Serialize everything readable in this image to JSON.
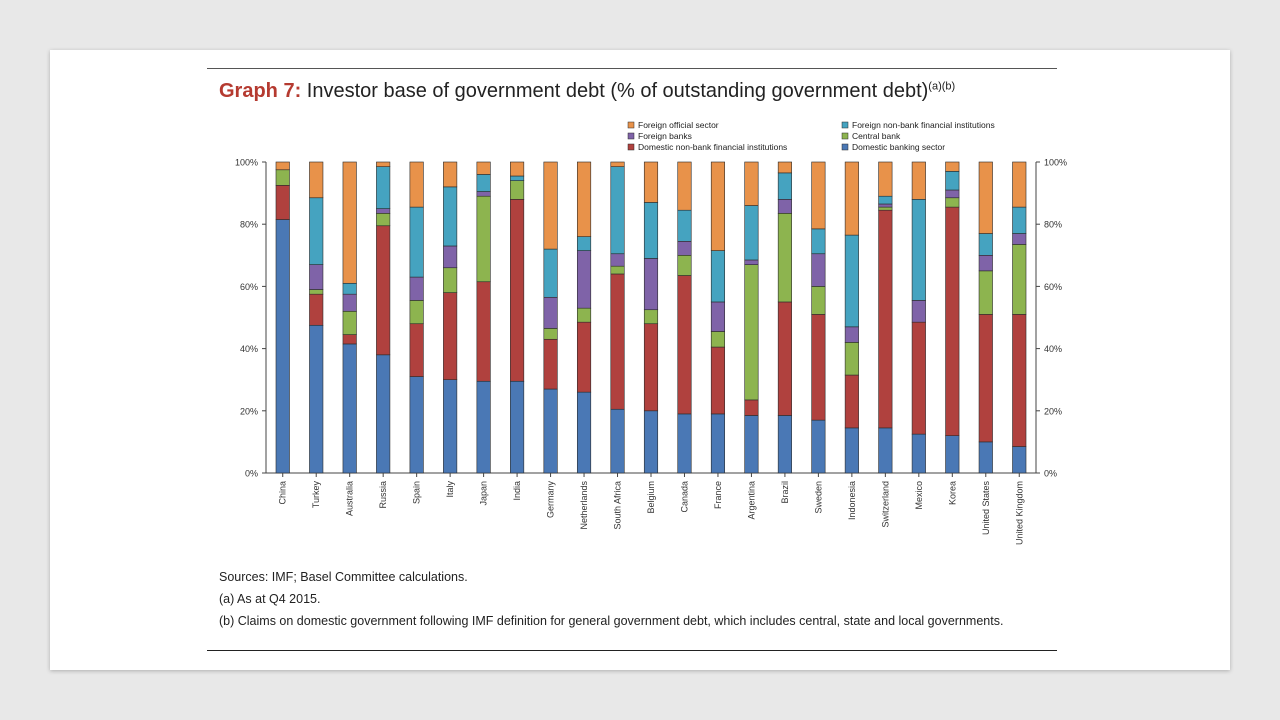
{
  "slide": {
    "title_prefix": "Graph 7:",
    "title_text": " Investor base of government debt (% of outstanding government debt)",
    "title_sup": "(a)(b)",
    "note_sources": "Sources: IMF; Basel Committee calculations.",
    "note_a": "(a) As at Q4 2015.",
    "note_b": "(b) Claims on domestic government following IMF definition for general government debt, which includes central, state and local governments."
  },
  "chart_data": {
    "type": "bar",
    "stacked": true,
    "categories": [
      "China",
      "Turkey",
      "Australia",
      "Russia",
      "Spain",
      "Italy",
      "Japan",
      "India",
      "Germany",
      "Netherlands",
      "South Africa",
      "Belgium",
      "Canada",
      "France",
      "Argentina",
      "Brazil",
      "Sweden",
      "Indonesia",
      "Switzerland",
      "Mexico",
      "Korea",
      "United States",
      "United Kingdom"
    ],
    "ylim": [
      0,
      100
    ],
    "yticks_left": [
      "0%",
      "20%",
      "40%",
      "60%",
      "80%",
      "100%"
    ],
    "yticks_right": [
      "0%",
      "20%",
      "40%",
      "60%",
      "80%",
      "100%"
    ],
    "legend_position": "top-right",
    "legend_order": [
      "Foreign official sector",
      "Foreign non-bank financial institutions",
      "Foreign banks",
      "Central bank",
      "Domestic non-bank financial institutions",
      "Domestic banking sector"
    ],
    "series": [
      {
        "name": "Domestic banking sector",
        "color": "#4a78b5",
        "values": [
          81.5,
          47.5,
          41.5,
          38,
          31,
          30,
          29.5,
          29.5,
          27,
          26,
          20.5,
          20,
          19,
          19,
          18.5,
          18.5,
          17,
          14.5,
          14.5,
          12.5,
          12,
          10,
          8.5
        ]
      },
      {
        "name": "Domestic non-bank financial institutions",
        "color": "#b0413e",
        "values": [
          11,
          10,
          3,
          41.5,
          17,
          28,
          32,
          58.5,
          16,
          22.5,
          43.5,
          28,
          44.5,
          21.5,
          5,
          36.5,
          34,
          17,
          70,
          36,
          73.5,
          41,
          42.5
        ]
      },
      {
        "name": "Central bank",
        "color": "#8db44f",
        "values": [
          5,
          1.5,
          7.5,
          4,
          7.5,
          8,
          27.5,
          6,
          3.5,
          4.5,
          2.5,
          4.5,
          6.5,
          5,
          43.5,
          28.5,
          9,
          10.5,
          1,
          0,
          3,
          14,
          22.5
        ]
      },
      {
        "name": "Foreign banks",
        "color": "#7f63a8",
        "values": [
          0,
          8,
          5.5,
          1.5,
          7.5,
          7,
          1.5,
          0,
          10,
          18.5,
          4,
          16.5,
          4.5,
          9.5,
          1.5,
          4.5,
          10.5,
          5,
          1,
          7,
          2.5,
          5,
          3.5
        ]
      },
      {
        "name": "Foreign non-bank financial institutions",
        "color": "#45a3c0",
        "values": [
          0,
          21.5,
          3.5,
          13.5,
          22.5,
          19,
          5.5,
          1.5,
          15.5,
          4.5,
          28,
          18,
          10,
          16.5,
          17.5,
          8.5,
          8,
          29.5,
          2.5,
          32.5,
          6,
          7,
          8.5
        ]
      },
      {
        "name": "Foreign official sector",
        "color": "#e8924a",
        "values": [
          2.5,
          11.5,
          39,
          1.5,
          14.5,
          8,
          4,
          4.5,
          28,
          24,
          1.5,
          13,
          15.5,
          28.5,
          14,
          3.5,
          21.5,
          23.5,
          11,
          12,
          3,
          23,
          14.5
        ]
      }
    ]
  }
}
